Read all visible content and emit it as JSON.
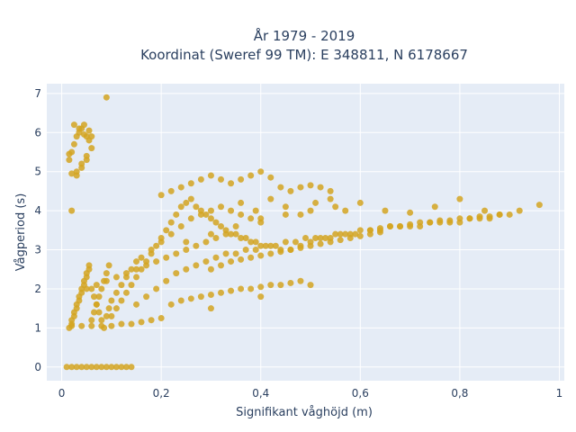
{
  "chart_data": {
    "type": "scatter",
    "title": [
      "År 1979 - 2019",
      "Koordinat (Sweref 99 TM): E 348811, N 6178667"
    ],
    "xlabel": "Signifikant våghöjd (m)",
    "ylabel": "Vågperiod (s)",
    "xlim": [
      -0.03,
      1.01
    ],
    "ylim": [
      -0.35,
      7.25
    ],
    "x_ticks": [
      0,
      0.2,
      0.4,
      0.6,
      0.8,
      1
    ],
    "x_tick_labels": [
      "0",
      "0,2",
      "0,4",
      "0,6",
      "0,8",
      "1"
    ],
    "y_ticks": [
      0,
      1,
      2,
      3,
      4,
      5,
      6,
      7
    ],
    "y_tick_labels": [
      "0",
      "1",
      "2",
      "3",
      "4",
      "5",
      "6",
      "7"
    ],
    "grid": true,
    "background": "#e5ecf6",
    "marker_color": "#d4a421",
    "series": [
      {
        "x": [
          0.01,
          0.02,
          0.03,
          0.04,
          0.05,
          0.06,
          0.07,
          0.08,
          0.09,
          0.1,
          0.11,
          0.12,
          0.13,
          0.14,
          0.015,
          0.02,
          0.025,
          0.03,
          0.035,
          0.04,
          0.045,
          0.05,
          0.055,
          0.06,
          0.05,
          0.04,
          0.03,
          0.02,
          0.02,
          0.025,
          0.03,
          0.035,
          0.04,
          0.045,
          0.05,
          0.055,
          0.06,
          0.065,
          0.07,
          0.075,
          0.08,
          0.085,
          0.09,
          0.095,
          0.1,
          0.11,
          0.12,
          0.13,
          0.14,
          0.15,
          0.16,
          0.17,
          0.18,
          0.19,
          0.2,
          0.21,
          0.22,
          0.23,
          0.24,
          0.25,
          0.26,
          0.27,
          0.28,
          0.29,
          0.3,
          0.31,
          0.32,
          0.33,
          0.34,
          0.35,
          0.36,
          0.37,
          0.38,
          0.39,
          0.4,
          0.42,
          0.44,
          0.46,
          0.48,
          0.5,
          0.52,
          0.54,
          0.56,
          0.58,
          0.6,
          0.62,
          0.64,
          0.66,
          0.68,
          0.7,
          0.72,
          0.74,
          0.76,
          0.78,
          0.8,
          0.82,
          0.84,
          0.86,
          0.88,
          0.9,
          0.92,
          0.96,
          0.09,
          0.02,
          0.03,
          0.04,
          0.05,
          0.06,
          0.025,
          0.035,
          0.045,
          0.055,
          0.015,
          0.2,
          0.22,
          0.24,
          0.26,
          0.28,
          0.3,
          0.32,
          0.34,
          0.36,
          0.38,
          0.4,
          0.42,
          0.44,
          0.46,
          0.48,
          0.5,
          0.52,
          0.54,
          0.22,
          0.24,
          0.26,
          0.28,
          0.3,
          0.32,
          0.34,
          0.36,
          0.38,
          0.4,
          0.42,
          0.44,
          0.46,
          0.48,
          0.05,
          0.07,
          0.09,
          0.11,
          0.13,
          0.15,
          0.17,
          0.19,
          0.21,
          0.23,
          0.25,
          0.27,
          0.29,
          0.31,
          0.33,
          0.3,
          0.32,
          0.34,
          0.36,
          0.38,
          0.4,
          0.42,
          0.44,
          0.46,
          0.48,
          0.5,
          0.52,
          0.54,
          0.56,
          0.58,
          0.6,
          0.62,
          0.64,
          0.62,
          0.64,
          0.66,
          0.68,
          0.7,
          0.72,
          0.74,
          0.76,
          0.78,
          0.8,
          0.82,
          0.84,
          0.86,
          0.88,
          0.25,
          0.3,
          0.35,
          0.4,
          0.45,
          0.5,
          0.55,
          0.6,
          0.65,
          0.7,
          0.75,
          0.8,
          0.85,
          0.02,
          0.04,
          0.06,
          0.08,
          0.1,
          0.12,
          0.14,
          0.16,
          0.18,
          0.2,
          0.3,
          0.4,
          0.5,
          0.16,
          0.18,
          0.2,
          0.22,
          0.24,
          0.26,
          0.28,
          0.3,
          0.32,
          0.34,
          0.36,
          0.38,
          0.4,
          0.36,
          0.39,
          0.42,
          0.45,
          0.48,
          0.51,
          0.54,
          0.57,
          0.015,
          0.02,
          0.025,
          0.03,
          0.035,
          0.04,
          0.045,
          0.05,
          0.055,
          0.06,
          0.065,
          0.07,
          0.075,
          0.08,
          0.085,
          0.09,
          0.095,
          0.1,
          0.11,
          0.12,
          0.13,
          0.14,
          0.15,
          0.15,
          0.17,
          0.19,
          0.21,
          0.23,
          0.25,
          0.27,
          0.29,
          0.31,
          0.33,
          0.35,
          0.37,
          0.39,
          0.41,
          0.43,
          0.45,
          0.47,
          0.49,
          0.51,
          0.53,
          0.55,
          0.57,
          0.59
        ],
        "y": [
          0,
          0,
          0,
          0,
          0,
          0,
          0,
          0,
          0,
          0,
          0,
          0,
          0,
          0,
          5.3,
          5.5,
          5.7,
          5.9,
          6.0,
          6.1,
          6.2,
          5.9,
          5.8,
          5.6,
          5.4,
          5.2,
          5.0,
          4.95,
          1.1,
          1.3,
          1.5,
          1.7,
          1.9,
          2.1,
          2.3,
          2.5,
          1.2,
          1.4,
          1.6,
          1.8,
          2.0,
          2.2,
          2.4,
          2.6,
          1.3,
          1.5,
          1.7,
          1.9,
          2.1,
          2.3,
          2.5,
          2.7,
          2.9,
          3.1,
          3.3,
          3.5,
          3.7,
          3.9,
          4.1,
          4.2,
          4.3,
          4.1,
          4.0,
          3.9,
          3.8,
          3.7,
          3.6,
          3.5,
          3.4,
          3.4,
          3.3,
          3.3,
          3.2,
          3.2,
          3.1,
          3.1,
          3.0,
          3.0,
          3.1,
          3.2,
          3.3,
          3.3,
          3.4,
          3.4,
          3.5,
          3.5,
          3.5,
          3.6,
          3.6,
          3.6,
          3.6,
          3.7,
          3.7,
          3.7,
          3.7,
          3.8,
          3.8,
          3.8,
          3.9,
          3.9,
          4.0,
          4.15,
          6.9,
          4.0,
          4.9,
          5.1,
          5.3,
          5.9,
          6.2,
          6.1,
          5.95,
          6.05,
          5.45,
          4.4,
          4.5,
          4.6,
          4.7,
          4.8,
          4.9,
          4.8,
          4.7,
          4.8,
          4.9,
          5.0,
          4.85,
          4.6,
          4.5,
          4.6,
          4.65,
          4.6,
          4.5,
          1.6,
          1.7,
          1.75,
          1.8,
          1.85,
          1.9,
          1.95,
          2.0,
          2.0,
          2.05,
          2.1,
          2.1,
          2.15,
          2.2,
          2.0,
          2.1,
          2.2,
          2.3,
          2.4,
          2.5,
          2.6,
          2.7,
          2.8,
          2.9,
          3.0,
          3.1,
          3.2,
          3.3,
          3.4,
          2.5,
          2.6,
          2.7,
          2.75,
          2.8,
          2.85,
          2.9,
          2.95,
          3.0,
          3.05,
          3.1,
          3.15,
          3.2,
          3.25,
          3.3,
          3.35,
          3.4,
          3.45,
          3.5,
          3.55,
          3.6,
          3.6,
          3.65,
          3.7,
          3.7,
          3.75,
          3.75,
          3.8,
          3.8,
          3.85,
          3.85,
          3.9,
          3.2,
          3.4,
          3.6,
          3.8,
          3.9,
          4.0,
          4.1,
          4.2,
          4.0,
          3.95,
          4.1,
          4.3,
          4.0,
          1.05,
          1.05,
          1.05,
          1.05,
          1.05,
          1.1,
          1.1,
          1.15,
          1.2,
          1.25,
          1.5,
          1.8,
          2.1,
          2.8,
          3.0,
          3.2,
          3.4,
          3.6,
          3.8,
          3.9,
          4.0,
          4.1,
          4.0,
          3.9,
          3.8,
          3.7,
          4.2,
          4.0,
          4.3,
          4.1,
          3.9,
          4.2,
          4.3,
          4.0,
          1.0,
          1.2,
          1.4,
          1.6,
          1.8,
          2.0,
          2.2,
          2.4,
          2.6,
          2.0,
          1.8,
          1.6,
          1.4,
          1.2,
          1.0,
          1.3,
          1.5,
          1.7,
          1.9,
          2.1,
          2.3,
          2.5,
          2.7,
          1.6,
          1.8,
          2.0,
          2.2,
          2.4,
          2.5,
          2.6,
          2.7,
          2.8,
          2.9,
          2.9,
          3.0,
          3.0,
          3.1,
          3.1,
          3.2,
          3.2,
          3.3,
          3.3,
          3.3,
          3.4,
          3.4,
          3.4
        ]
      }
    ]
  }
}
